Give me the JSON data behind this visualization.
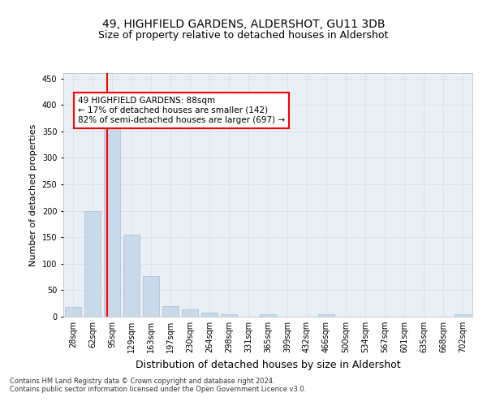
{
  "title": "49, HIGHFIELD GARDENS, ALDERSHOT, GU11 3DB",
  "subtitle": "Size of property relative to detached houses in Aldershot",
  "xlabel": "Distribution of detached houses by size in Aldershot",
  "ylabel": "Number of detached properties",
  "categories": [
    "28sqm",
    "62sqm",
    "95sqm",
    "129sqm",
    "163sqm",
    "197sqm",
    "230sqm",
    "264sqm",
    "298sqm",
    "331sqm",
    "365sqm",
    "399sqm",
    "432sqm",
    "466sqm",
    "500sqm",
    "534sqm",
    "567sqm",
    "601sqm",
    "635sqm",
    "668sqm",
    "702sqm"
  ],
  "values": [
    18,
    200,
    365,
    155,
    77,
    20,
    14,
    7,
    5,
    0,
    4,
    0,
    0,
    4,
    0,
    0,
    0,
    0,
    0,
    0,
    4
  ],
  "bar_color": "#c9d9ea",
  "bar_edge_color": "#a8bfd0",
  "property_line_x": 1.75,
  "property_sqm": 88,
  "annotation_text": "49 HIGHFIELD GARDENS: 88sqm\n← 17% of detached houses are smaller (142)\n82% of semi-detached houses are larger (697) →",
  "annotation_box_color": "white",
  "annotation_box_edge": "red",
  "ylim": [
    0,
    460
  ],
  "yticks": [
    0,
    50,
    100,
    150,
    200,
    250,
    300,
    350,
    400,
    450
  ],
  "grid_color": "#d8e0e8",
  "footnote1": "Contains HM Land Registry data © Crown copyright and database right 2024.",
  "footnote2": "Contains public sector information licensed under the Open Government Licence v3.0.",
  "background_color": "#e8eff5",
  "title_fontsize": 10,
  "subtitle_fontsize": 9,
  "annotation_fontsize": 7.5,
  "tick_fontsize": 7,
  "ylabel_fontsize": 8,
  "xlabel_fontsize": 9
}
